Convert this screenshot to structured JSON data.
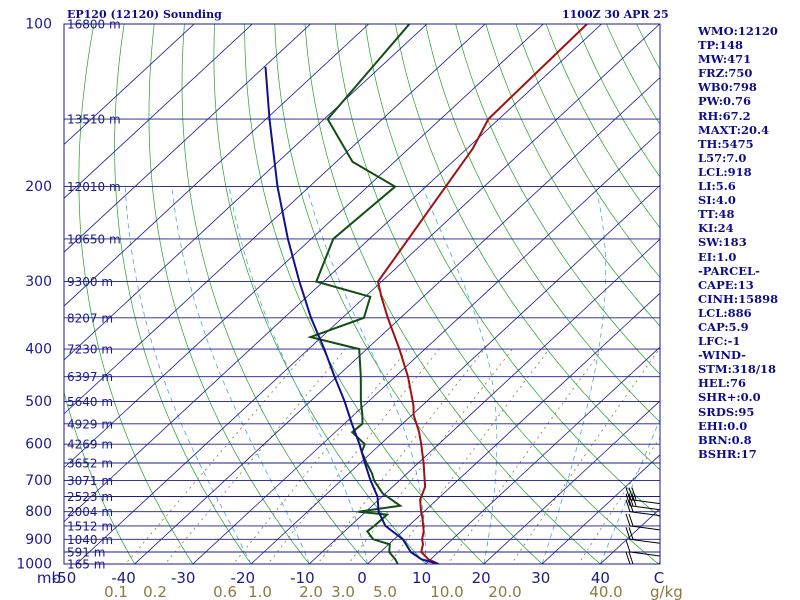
{
  "header": {
    "left": "EP120 (12120) Sounding",
    "right": "1100Z 30 APR 25"
  },
  "indices": [
    "WMO:12120",
    "TP:148",
    "MW:471",
    "FRZ:750",
    "WB0:798",
    "PW:0.76",
    "RH:67.2",
    "MAXT:20.4",
    "TH:5475",
    "L57:7.0",
    "LCL:918",
    "LI:5.6",
    "SI:4.0",
    "TT:48",
    "KI:24",
    "SW:183",
    "EI:1.0",
    "-PARCEL-",
    "CAPE:13",
    "CINH:15898",
    "LCL:886",
    "CAP:5.9",
    "LFC:-1",
    "-WIND-",
    "STM:318/18",
    "HEL:76",
    "SHR+:0.0",
    "SRDS:95",
    "EHI:0.0",
    "BRN:0.8",
    "BSHR:17"
  ],
  "chart_data": {
    "type": "line",
    "subtype": "skew-T log-P sounding",
    "xlim": [
      -50,
      50
    ],
    "ylim": [
      1000,
      100
    ],
    "y_scale": "log",
    "x_unit_label": "C",
    "y_unit_label": "mb",
    "x_ticks": [
      -50,
      -40,
      -30,
      -20,
      -10,
      0,
      10,
      20,
      30,
      40
    ],
    "x_tick_labels": [
      "-50",
      "-40",
      "-30",
      "-20",
      "-10",
      "0",
      "10",
      "20",
      "30",
      "40"
    ],
    "p_ticks": [
      100,
      200,
      300,
      400,
      500,
      600,
      700,
      800,
      900,
      1000
    ],
    "height_levels": [
      {
        "p": 100,
        "label": "16800 m"
      },
      {
        "p": 150,
        "label": "13510 m"
      },
      {
        "p": 200,
        "label": "12010 m"
      },
      {
        "p": 250,
        "label": "10650 m"
      },
      {
        "p": 300,
        "label": "9300 m"
      },
      {
        "p": 350,
        "label": "8207 m"
      },
      {
        "p": 400,
        "label": "7230 m"
      },
      {
        "p": 450,
        "label": "6397 m"
      },
      {
        "p": 500,
        "label": "5640 m"
      },
      {
        "p": 550,
        "label": "4929 m"
      },
      {
        "p": 600,
        "label": "4269 m"
      },
      {
        "p": 650,
        "label": "3652 m"
      },
      {
        "p": 700,
        "label": "3071 m"
      },
      {
        "p": 750,
        "label": "2523 m"
      },
      {
        "p": 800,
        "label": "2004 m"
      },
      {
        "p": 850,
        "label": "1512 m"
      },
      {
        "p": 900,
        "label": "1040 m"
      },
      {
        "p": 950,
        "label": "591 m"
      },
      {
        "p": 1000,
        "label": "165 m"
      }
    ],
    "mixing_ratio_ticks": [
      0.1,
      0.2,
      0.6,
      1.0,
      2.0,
      3.0,
      5.0,
      10.0,
      20.0,
      40.0
    ],
    "mixing_ratio_labels": [
      "0.1",
      "0.2",
      "0.6",
      "1.0",
      "2.0",
      "3.0",
      "5.0",
      "10.0",
      "20.0",
      "40.0"
    ],
    "mixing_ratio_unit": "g/kg",
    "series": [
      {
        "color": "#a01010",
        "points": [
          [
            1000,
            12.2
          ],
          [
            980,
            9.6
          ],
          [
            950,
            7.0
          ],
          [
            920,
            5.9
          ],
          [
            900,
            4.8
          ],
          [
            870,
            3.6
          ],
          [
            850,
            2.5
          ],
          [
            820,
            0.8
          ],
          [
            800,
            -0.5
          ],
          [
            760,
            -2.9
          ],
          [
            720,
            -4.4
          ],
          [
            700,
            -5.7
          ],
          [
            650,
            -9.1
          ],
          [
            600,
            -13.0
          ],
          [
            570,
            -15.6
          ],
          [
            550,
            -17.6
          ],
          [
            530,
            -19.7
          ],
          [
            510,
            -21.4
          ],
          [
            500,
            -22.4
          ],
          [
            450,
            -27.8
          ],
          [
            400,
            -34.4
          ],
          [
            350,
            -42.2
          ],
          [
            320,
            -47.2
          ],
          [
            300,
            -50.6
          ],
          [
            250,
            -53.3
          ],
          [
            200,
            -56.6
          ],
          [
            170,
            -59.0
          ],
          [
            150,
            -61.8
          ],
          [
            100,
            -62.5
          ]
        ]
      },
      {
        "color": "#124d12",
        "points": [
          [
            1000,
            5.2
          ],
          [
            980,
            3.9
          ],
          [
            950,
            1.5
          ],
          [
            920,
            0.2
          ],
          [
            900,
            -3.6
          ],
          [
            870,
            -6.1
          ],
          [
            850,
            -5.9
          ],
          [
            810,
            -5.8
          ],
          [
            800,
            -11.3
          ],
          [
            780,
            -5.2
          ],
          [
            740,
            -10.5
          ],
          [
            700,
            -14.4
          ],
          [
            680,
            -16.0
          ],
          [
            650,
            -18.9
          ],
          [
            620,
            -21.8
          ],
          [
            600,
            -22.7
          ],
          [
            570,
            -27.1
          ],
          [
            550,
            -26.9
          ],
          [
            530,
            -28.5
          ],
          [
            500,
            -31.3
          ],
          [
            450,
            -35.9
          ],
          [
            400,
            -41.3
          ],
          [
            380,
            -51.9
          ],
          [
            350,
            -46.3
          ],
          [
            320,
            -49.1
          ],
          [
            300,
            -61.2
          ],
          [
            250,
            -66.2
          ],
          [
            200,
            -65.3
          ],
          [
            180,
            -77.2
          ],
          [
            150,
            -89.4
          ],
          [
            100,
            -93.0
          ]
        ]
      },
      {
        "color": "#101090",
        "points": [
          [
            1000,
            12.2
          ],
          [
            980,
            8.4
          ],
          [
            950,
            5.2
          ],
          [
            900,
            1.5
          ],
          [
            850,
            -4.0
          ],
          [
            800,
            -7.8
          ],
          [
            750,
            -10.8
          ],
          [
            700,
            -15.0
          ],
          [
            650,
            -19.2
          ],
          [
            600,
            -23.6
          ],
          [
            550,
            -28.7
          ],
          [
            500,
            -34.1
          ],
          [
            450,
            -40.4
          ],
          [
            400,
            -47.3
          ],
          [
            350,
            -55.4
          ],
          [
            300,
            -64.1
          ],
          [
            250,
            -74.0
          ],
          [
            200,
            -85.5
          ],
          [
            150,
            -99.4
          ],
          [
            120,
            -109.8
          ]
        ]
      }
    ]
  }
}
